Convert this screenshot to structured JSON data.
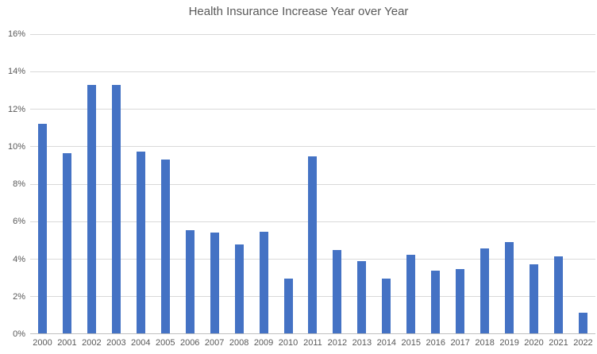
{
  "chart_data": {
    "type": "bar",
    "title": "Health Insurance Increase Year over Year",
    "categories": [
      "2000",
      "2001",
      "2002",
      "2003",
      "2004",
      "2005",
      "2006",
      "2007",
      "2008",
      "2009",
      "2010",
      "2011",
      "2012",
      "2013",
      "2014",
      "2015",
      "2016",
      "2017",
      "2018",
      "2019",
      "2020",
      "2021",
      "2022"
    ],
    "values": [
      11.2,
      9.65,
      13.3,
      13.3,
      9.7,
      9.3,
      5.5,
      5.4,
      4.75,
      5.45,
      2.95,
      9.45,
      4.45,
      3.85,
      2.95,
      4.2,
      3.35,
      3.45,
      4.55,
      4.9,
      3.7,
      4.1,
      1.1
    ],
    "xlabel": "",
    "ylabel": "",
    "ylim": [
      0,
      16
    ],
    "y_ticks": [
      {
        "value": 0,
        "label": "0%"
      },
      {
        "value": 2,
        "label": "2%"
      },
      {
        "value": 4,
        "label": "4%"
      },
      {
        "value": 6,
        "label": "6%"
      },
      {
        "value": 8,
        "label": "8%"
      },
      {
        "value": 10,
        "label": "10%"
      },
      {
        "value": 12,
        "label": "12%"
      },
      {
        "value": 14,
        "label": "14%"
      },
      {
        "value": 16,
        "label": "16%"
      }
    ],
    "grid": true,
    "legend_position": "none",
    "colors": {
      "bar": "#4472C4",
      "gridline": "#D9D9D9",
      "axis_line": "#BFBFBF",
      "title_text": "#595959",
      "tick_text": "#595959",
      "background": "#FFFFFF"
    }
  }
}
